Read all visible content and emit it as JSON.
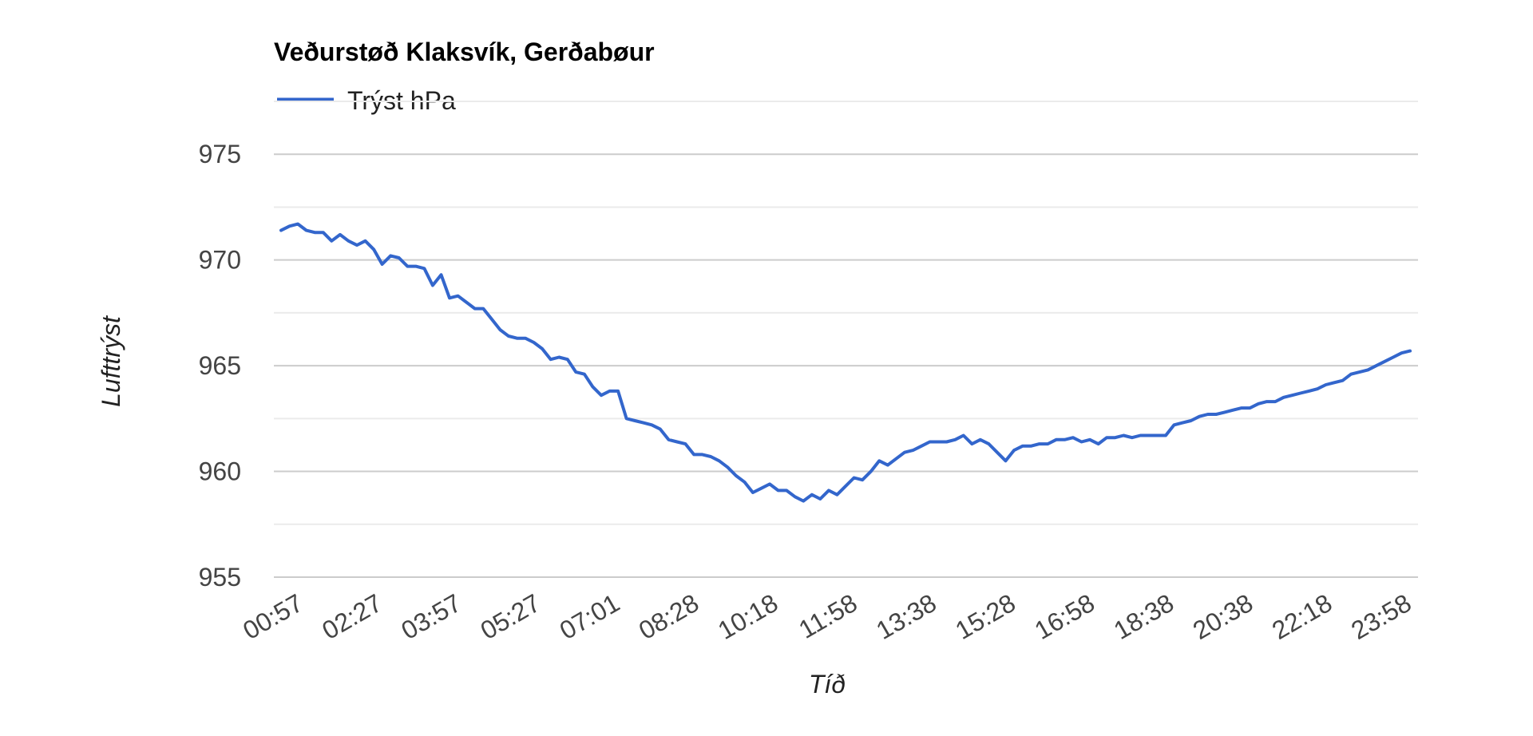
{
  "chart_data": {
    "type": "line",
    "title": "Veðurstøð Klaksvík, Gerðabøur",
    "xlabel": "Tíð",
    "ylabel": "Lufttrýst",
    "legend_position": "top-left",
    "grid": true,
    "ylim": [
      955,
      977.5
    ],
    "yticks": [
      955,
      960,
      965,
      970,
      975
    ],
    "x_tick_labels": [
      "00:57",
      "02:27",
      "03:57",
      "05:27",
      "07:01",
      "08:28",
      "10:18",
      "11:58",
      "13:38",
      "15:28",
      "16:58",
      "18:38",
      "20:38",
      "22:18",
      "23:58"
    ],
    "series": [
      {
        "name": "Trýst hPa",
        "color": "#3366cc",
        "values": [
          971.4,
          971.6,
          971.7,
          971.4,
          971.3,
          971.3,
          970.9,
          971.2,
          970.9,
          970.7,
          970.9,
          970.5,
          969.8,
          970.2,
          970.1,
          969.7,
          969.7,
          969.6,
          968.8,
          969.3,
          968.2,
          968.3,
          968.0,
          967.7,
          967.7,
          967.2,
          966.7,
          966.4,
          966.3,
          966.3,
          966.1,
          965.8,
          965.3,
          965.4,
          965.3,
          964.7,
          964.6,
          964.0,
          963.6,
          963.8,
          963.8,
          962.5,
          962.4,
          962.3,
          962.2,
          962.0,
          961.5,
          961.4,
          961.3,
          960.8,
          960.8,
          960.7,
          960.5,
          960.2,
          959.8,
          959.5,
          959.0,
          959.2,
          959.4,
          959.1,
          959.1,
          958.8,
          958.6,
          958.9,
          958.7,
          959.1,
          958.9,
          959.3,
          959.7,
          959.6,
          960.0,
          960.5,
          960.3,
          960.6,
          960.9,
          961.0,
          961.2,
          961.4,
          961.4,
          961.4,
          961.5,
          961.7,
          961.3,
          961.5,
          961.3,
          960.9,
          960.5,
          961.0,
          961.2,
          961.2,
          961.3,
          961.3,
          961.5,
          961.5,
          961.6,
          961.4,
          961.5,
          961.3,
          961.6,
          961.6,
          961.7,
          961.6,
          961.7,
          961.7,
          961.7,
          961.7,
          962.2,
          962.3,
          962.4,
          962.6,
          962.7,
          962.7,
          962.8,
          962.9,
          963.0,
          963.0,
          963.2,
          963.3,
          963.3,
          963.5,
          963.6,
          963.7,
          963.8,
          963.9,
          964.1,
          964.2,
          964.3,
          964.6,
          964.7,
          964.8,
          965.0,
          965.2,
          965.4,
          965.6,
          965.7
        ]
      }
    ]
  }
}
